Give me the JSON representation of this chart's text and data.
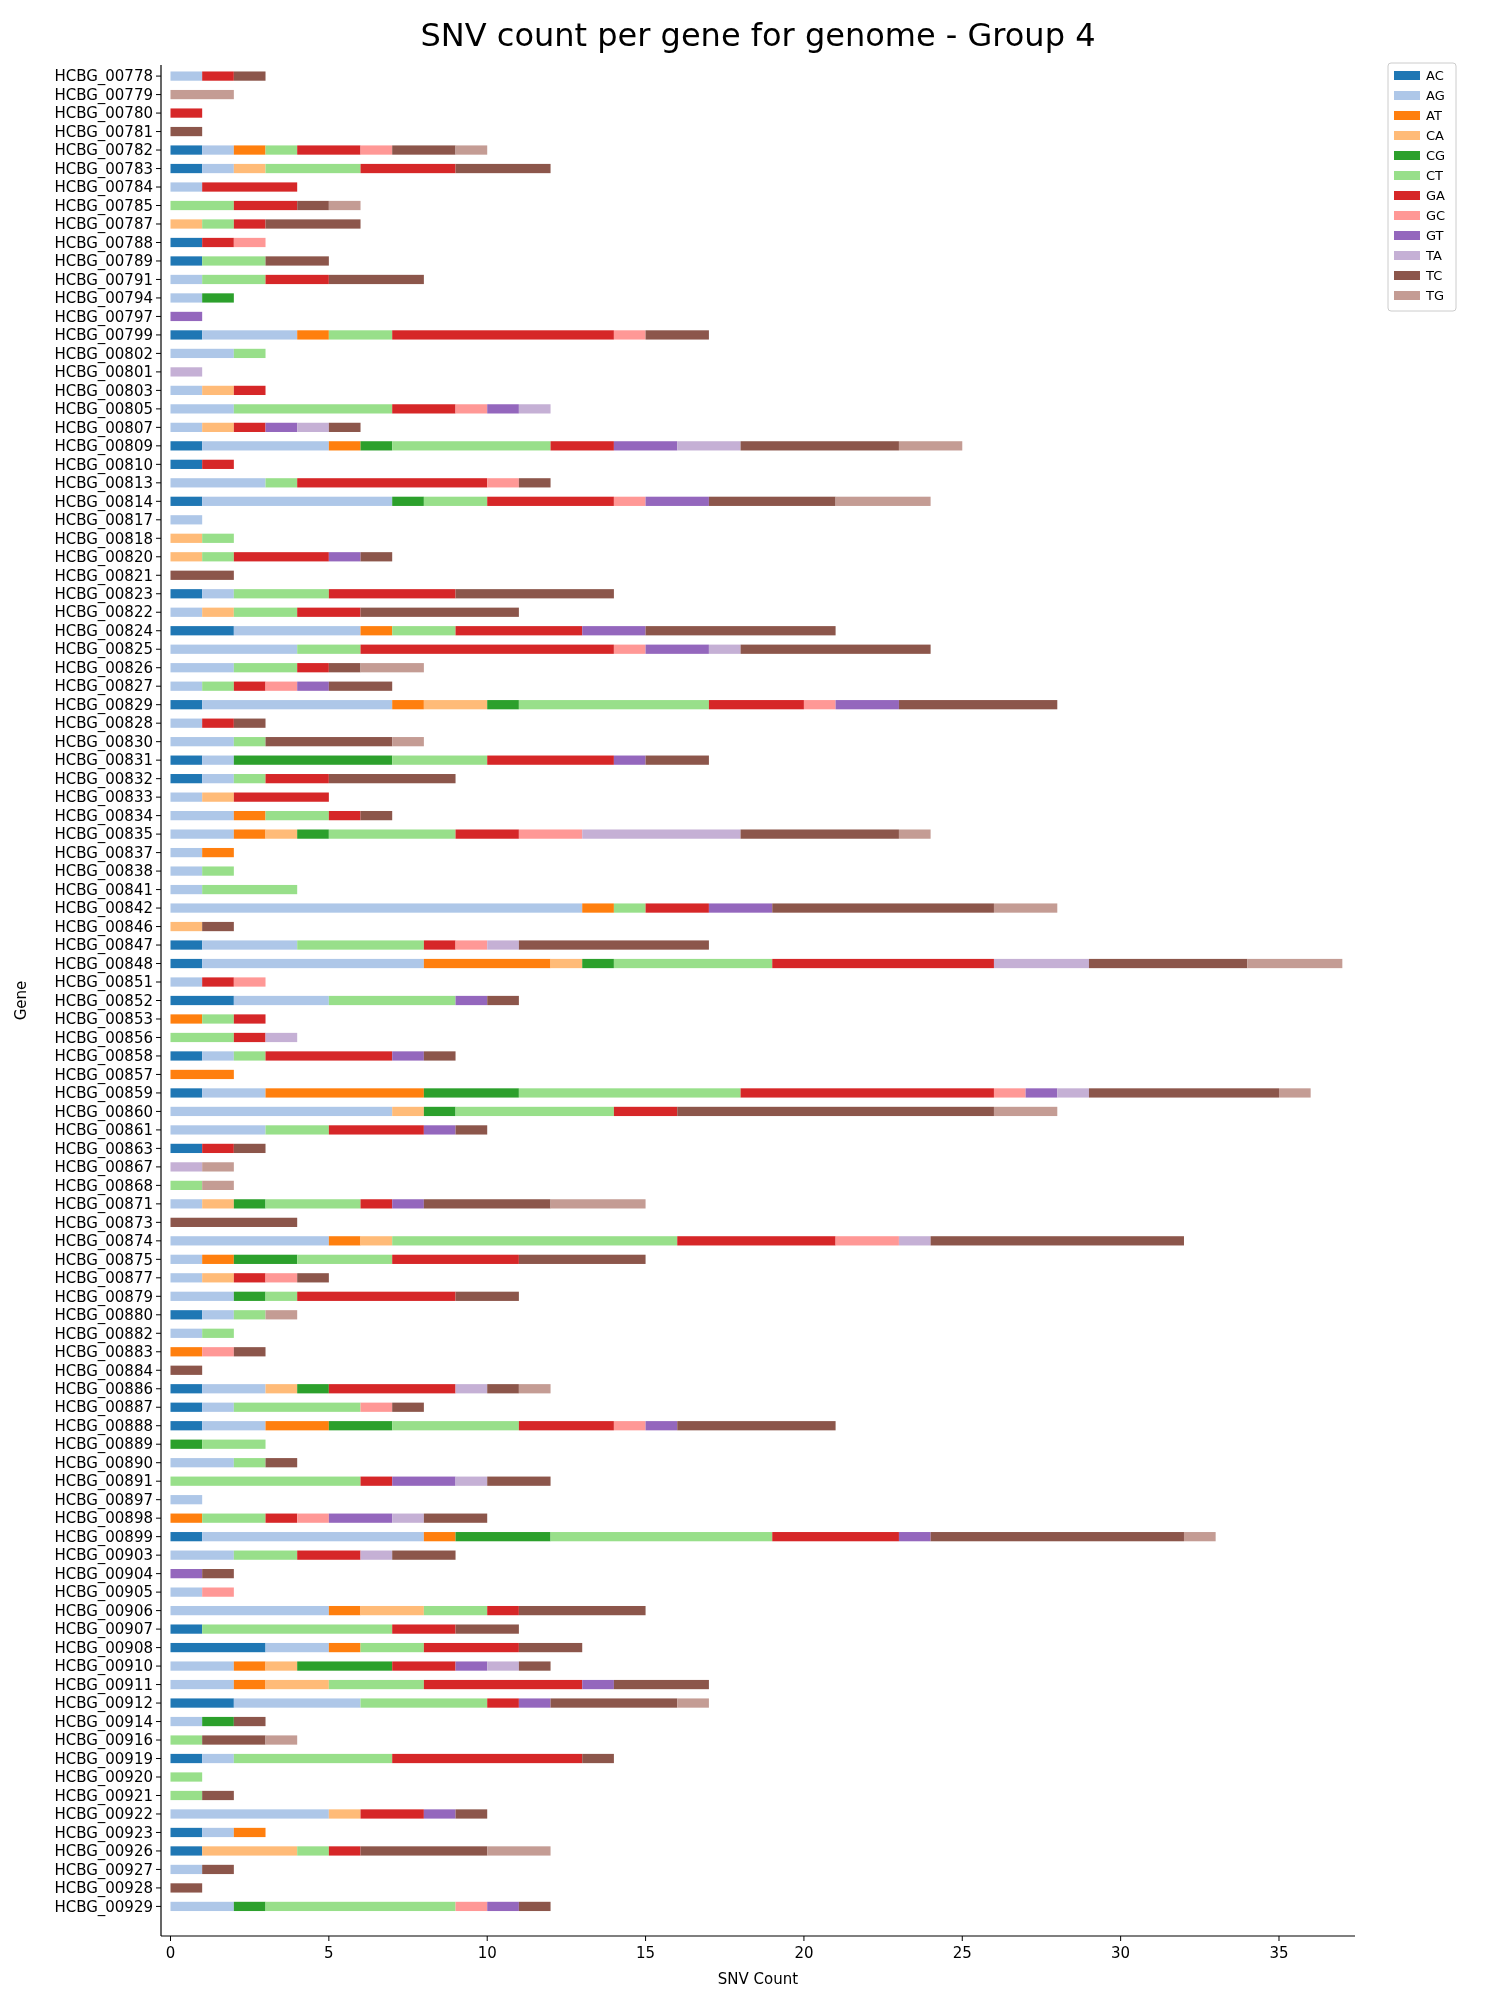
{
  "chart_data": {
    "type": "bar",
    "orientation": "horizontal",
    "stacked": true,
    "title": "SNV count per gene for genome - Group 4",
    "xlabel": "SNV Count",
    "ylabel": "Gene",
    "legend": "top right",
    "grid": false,
    "xlim": [
      -0.3,
      37.4
    ],
    "xticks": [
      0,
      5,
      10,
      15,
      20,
      25,
      30,
      35
    ],
    "categories": [
      "HCBG_00778",
      "HCBG_00779",
      "HCBG_00780",
      "HCBG_00781",
      "HCBG_00782",
      "HCBG_00783",
      "HCBG_00784",
      "HCBG_00785",
      "HCBG_00787",
      "HCBG_00788",
      "HCBG_00789",
      "HCBG_00791",
      "HCBG_00794",
      "HCBG_00797",
      "HCBG_00799",
      "HCBG_00802",
      "HCBG_00801",
      "HCBG_00803",
      "HCBG_00805",
      "HCBG_00807",
      "HCBG_00809",
      "HCBG_00810",
      "HCBG_00813",
      "HCBG_00814",
      "HCBG_00817",
      "HCBG_00818",
      "HCBG_00820",
      "HCBG_00821",
      "HCBG_00823",
      "HCBG_00822",
      "HCBG_00824",
      "HCBG_00825",
      "HCBG_00826",
      "HCBG_00827",
      "HCBG_00829",
      "HCBG_00828",
      "HCBG_00830",
      "HCBG_00831",
      "HCBG_00832",
      "HCBG_00833",
      "HCBG_00834",
      "HCBG_00835",
      "HCBG_00837",
      "HCBG_00838",
      "HCBG_00841",
      "HCBG_00842",
      "HCBG_00846",
      "HCBG_00847",
      "HCBG_00848",
      "HCBG_00851",
      "HCBG_00852",
      "HCBG_00853",
      "HCBG_00856",
      "HCBG_00858",
      "HCBG_00857",
      "HCBG_00859",
      "HCBG_00860",
      "HCBG_00861",
      "HCBG_00863",
      "HCBG_00867",
      "HCBG_00868",
      "HCBG_00871",
      "HCBG_00873",
      "HCBG_00874",
      "HCBG_00875",
      "HCBG_00877",
      "HCBG_00879",
      "HCBG_00880",
      "HCBG_00882",
      "HCBG_00883",
      "HCBG_00884",
      "HCBG_00886",
      "HCBG_00887",
      "HCBG_00888",
      "HCBG_00889",
      "HCBG_00890",
      "HCBG_00891",
      "HCBG_00897",
      "HCBG_00898",
      "HCBG_00899",
      "HCBG_00903",
      "HCBG_00904",
      "HCBG_00905",
      "HCBG_00906",
      "HCBG_00907",
      "HCBG_00908",
      "HCBG_00910",
      "HCBG_00911",
      "HCBG_00912",
      "HCBG_00914",
      "HCBG_00916",
      "HCBG_00919",
      "HCBG_00920",
      "HCBG_00921",
      "HCBG_00922",
      "HCBG_00923",
      "HCBG_00926",
      "HCBG_00927",
      "HCBG_00928",
      "HCBG_00929"
    ],
    "series": [
      {
        "name": "AC",
        "color": "#1f77b4",
        "values": [
          0,
          0,
          0,
          0,
          1,
          1,
          0,
          0,
          0,
          1,
          1,
          0,
          0,
          0,
          1,
          0,
          0,
          0,
          0,
          0,
          1,
          1,
          0,
          1,
          0,
          0,
          0,
          0,
          1,
          0,
          2,
          0,
          0,
          0,
          1,
          0,
          0,
          1,
          1,
          0,
          0,
          0,
          0,
          0,
          0,
          0,
          0,
          1,
          1,
          0,
          2,
          0,
          0,
          1,
          0,
          1,
          0,
          0,
          1,
          0,
          0,
          0,
          0,
          0,
          0,
          0,
          0,
          1,
          0,
          0,
          0,
          1,
          1,
          1,
          0,
          0,
          0,
          0,
          0,
          1,
          0,
          0,
          0,
          0,
          1,
          3,
          0,
          0,
          2,
          0,
          0,
          1,
          0,
          0,
          0,
          1,
          1,
          0,
          0,
          0
        ]
      },
      {
        "name": "AG",
        "color": "#aec7e8",
        "values": [
          1,
          0,
          0,
          0,
          1,
          1,
          1,
          0,
          0,
          0,
          0,
          1,
          1,
          0,
          3,
          2,
          0,
          1,
          2,
          1,
          4,
          0,
          3,
          6,
          1,
          0,
          0,
          0,
          1,
          1,
          4,
          4,
          2,
          1,
          6,
          1,
          2,
          1,
          1,
          1,
          2,
          2,
          1,
          1,
          1,
          13,
          0,
          3,
          7,
          1,
          3,
          0,
          0,
          1,
          0,
          2,
          7,
          3,
          0,
          0,
          0,
          1,
          0,
          5,
          1,
          1,
          2,
          1,
          1,
          0,
          0,
          2,
          1,
          2,
          0,
          2,
          0,
          1,
          0,
          7,
          2,
          0,
          1,
          5,
          0,
          2,
          2,
          2,
          4,
          1,
          0,
          1,
          0,
          0,
          5,
          1,
          0,
          1,
          0,
          2
        ]
      },
      {
        "name": "AT",
        "color": "#ff7f0e",
        "values": [
          0,
          0,
          0,
          0,
          1,
          0,
          0,
          0,
          0,
          0,
          0,
          0,
          0,
          0,
          1,
          0,
          0,
          0,
          0,
          0,
          1,
          0,
          0,
          0,
          0,
          0,
          0,
          0,
          0,
          0,
          1,
          0,
          0,
          0,
          1,
          0,
          0,
          0,
          0,
          0,
          1,
          1,
          1,
          0,
          0,
          1,
          0,
          0,
          4,
          0,
          0,
          1,
          0,
          0,
          2,
          5,
          0,
          0,
          0,
          0,
          0,
          0,
          0,
          1,
          1,
          0,
          0,
          0,
          0,
          1,
          0,
          0,
          0,
          2,
          0,
          0,
          0,
          0,
          1,
          1,
          0,
          0,
          0,
          1,
          0,
          1,
          1,
          1,
          0,
          0,
          0,
          0,
          0,
          0,
          0,
          1,
          0,
          0,
          0,
          0
        ]
      },
      {
        "name": "CA",
        "color": "#ffbb78",
        "values": [
          0,
          0,
          0,
          0,
          0,
          1,
          0,
          0,
          1,
          0,
          0,
          0,
          0,
          0,
          0,
          0,
          0,
          1,
          0,
          1,
          0,
          0,
          0,
          0,
          0,
          1,
          1,
          0,
          0,
          1,
          0,
          0,
          0,
          0,
          2,
          0,
          0,
          0,
          0,
          1,
          0,
          1,
          0,
          0,
          0,
          0,
          1,
          0,
          1,
          0,
          0,
          0,
          0,
          0,
          0,
          0,
          1,
          0,
          0,
          0,
          0,
          1,
          0,
          1,
          0,
          1,
          0,
          0,
          0,
          0,
          0,
          1,
          0,
          0,
          0,
          0,
          0,
          0,
          0,
          0,
          0,
          0,
          0,
          2,
          0,
          0,
          1,
          2,
          0,
          0,
          0,
          0,
          0,
          0,
          1,
          0,
          3,
          0,
          0,
          0
        ]
      },
      {
        "name": "CG",
        "color": "#2ca02c",
        "values": [
          0,
          0,
          0,
          0,
          0,
          0,
          0,
          0,
          0,
          0,
          0,
          0,
          1,
          0,
          0,
          0,
          0,
          0,
          0,
          0,
          1,
          0,
          0,
          1,
          0,
          0,
          0,
          0,
          0,
          0,
          0,
          0,
          0,
          0,
          1,
          0,
          0,
          5,
          0,
          0,
          0,
          1,
          0,
          0,
          0,
          0,
          0,
          0,
          1,
          0,
          0,
          0,
          0,
          0,
          0,
          3,
          1,
          0,
          0,
          0,
          0,
          1,
          0,
          0,
          2,
          0,
          1,
          0,
          0,
          0,
          0,
          1,
          0,
          2,
          1,
          0,
          0,
          0,
          0,
          3,
          0,
          0,
          0,
          0,
          0,
          0,
          3,
          0,
          0,
          1,
          0,
          0,
          0,
          0,
          0,
          0,
          0,
          0,
          0,
          1
        ]
      },
      {
        "name": "CT",
        "color": "#98df8a",
        "values": [
          0,
          0,
          0,
          0,
          1,
          3,
          0,
          2,
          1,
          0,
          2,
          2,
          0,
          0,
          2,
          1,
          0,
          0,
          5,
          0,
          5,
          0,
          1,
          2,
          0,
          1,
          1,
          0,
          3,
          2,
          2,
          2,
          2,
          1,
          6,
          0,
          1,
          3,
          1,
          0,
          2,
          4,
          0,
          1,
          3,
          1,
          0,
          4,
          5,
          0,
          4,
          1,
          2,
          1,
          0,
          7,
          5,
          2,
          0,
          0,
          1,
          3,
          0,
          9,
          3,
          0,
          1,
          1,
          1,
          0,
          0,
          0,
          4,
          4,
          2,
          1,
          6,
          0,
          2,
          7,
          2,
          0,
          0,
          2,
          6,
          2,
          0,
          3,
          4,
          0,
          1,
          5,
          1,
          1,
          0,
          0,
          1,
          0,
          0,
          6
        ]
      },
      {
        "name": "GA",
        "color": "#d62728",
        "values": [
          1,
          0,
          1,
          0,
          2,
          3,
          3,
          2,
          1,
          1,
          0,
          2,
          0,
          0,
          7,
          0,
          0,
          1,
          2,
          1,
          2,
          1,
          6,
          4,
          0,
          0,
          3,
          0,
          4,
          2,
          4,
          8,
          1,
          1,
          3,
          1,
          0,
          4,
          2,
          3,
          1,
          2,
          0,
          0,
          0,
          2,
          0,
          1,
          7,
          1,
          0,
          1,
          1,
          4,
          0,
          8,
          2,
          3,
          1,
          0,
          0,
          1,
          0,
          5,
          4,
          1,
          5,
          0,
          0,
          0,
          0,
          4,
          0,
          3,
          0,
          0,
          1,
          0,
          1,
          4,
          2,
          0,
          0,
          1,
          2,
          3,
          2,
          5,
          1,
          0,
          0,
          6,
          0,
          0,
          2,
          0,
          1,
          0,
          0,
          0
        ]
      },
      {
        "name": "GC",
        "color": "#ff9896",
        "values": [
          0,
          0,
          0,
          0,
          1,
          0,
          0,
          0,
          0,
          1,
          0,
          0,
          0,
          0,
          1,
          0,
          0,
          0,
          1,
          0,
          0,
          0,
          1,
          1,
          0,
          0,
          0,
          0,
          0,
          0,
          0,
          1,
          0,
          1,
          1,
          0,
          0,
          0,
          0,
          0,
          0,
          2,
          0,
          0,
          0,
          0,
          0,
          1,
          0,
          1,
          0,
          0,
          0,
          0,
          0,
          1,
          0,
          0,
          0,
          0,
          0,
          0,
          0,
          2,
          0,
          1,
          0,
          0,
          0,
          1,
          0,
          0,
          1,
          1,
          0,
          0,
          0,
          0,
          1,
          0,
          0,
          0,
          1,
          0,
          0,
          0,
          0,
          0,
          0,
          0,
          0,
          0,
          0,
          0,
          0,
          0,
          0,
          0,
          0,
          1
        ]
      },
      {
        "name": "GT",
        "color": "#9467bd",
        "values": [
          0,
          0,
          0,
          0,
          0,
          0,
          0,
          0,
          0,
          0,
          0,
          0,
          0,
          1,
          0,
          0,
          0,
          0,
          1,
          1,
          2,
          0,
          0,
          2,
          0,
          0,
          1,
          0,
          0,
          0,
          2,
          2,
          0,
          1,
          2,
          0,
          0,
          1,
          0,
          0,
          0,
          0,
          0,
          0,
          0,
          2,
          0,
          0,
          0,
          0,
          1,
          0,
          0,
          1,
          0,
          1,
          0,
          1,
          0,
          0,
          0,
          1,
          0,
          0,
          0,
          0,
          0,
          0,
          0,
          0,
          0,
          0,
          0,
          1,
          0,
          0,
          2,
          0,
          2,
          1,
          0,
          1,
          0,
          0,
          0,
          0,
          1,
          1,
          1,
          0,
          0,
          0,
          0,
          0,
          1,
          0,
          0,
          0,
          0,
          1
        ]
      },
      {
        "name": "TA",
        "color": "#c5b0d5",
        "values": [
          0,
          0,
          0,
          0,
          0,
          0,
          0,
          0,
          0,
          0,
          0,
          0,
          0,
          0,
          0,
          0,
          1,
          0,
          1,
          1,
          2,
          0,
          0,
          0,
          0,
          0,
          0,
          0,
          0,
          0,
          0,
          1,
          0,
          0,
          0,
          0,
          0,
          0,
          0,
          0,
          0,
          5,
          0,
          0,
          0,
          0,
          0,
          1,
          3,
          0,
          0,
          0,
          1,
          0,
          0,
          1,
          0,
          0,
          0,
          1,
          0,
          0,
          0,
          1,
          0,
          0,
          0,
          0,
          0,
          0,
          0,
          1,
          0,
          0,
          0,
          0,
          1,
          0,
          1,
          0,
          1,
          0,
          0,
          0,
          0,
          0,
          1,
          0,
          0,
          0,
          0,
          0,
          0,
          0,
          0,
          0,
          0,
          0,
          0,
          0
        ]
      },
      {
        "name": "TC",
        "color": "#8c564b",
        "values": [
          1,
          0,
          0,
          1,
          2,
          3,
          0,
          1,
          3,
          0,
          2,
          3,
          0,
          0,
          2,
          0,
          0,
          0,
          0,
          1,
          5,
          0,
          1,
          4,
          0,
          0,
          1,
          2,
          5,
          5,
          6,
          6,
          1,
          2,
          5,
          1,
          4,
          2,
          4,
          0,
          1,
          5,
          0,
          0,
          0,
          7,
          1,
          6,
          5,
          0,
          1,
          0,
          0,
          1,
          0,
          6,
          10,
          1,
          1,
          0,
          0,
          4,
          4,
          8,
          4,
          1,
          2,
          0,
          0,
          1,
          1,
          1,
          1,
          5,
          0,
          1,
          2,
          0,
          2,
          8,
          2,
          1,
          0,
          4,
          2,
          2,
          1,
          3,
          4,
          1,
          2,
          1,
          0,
          1,
          1,
          0,
          4,
          1,
          1,
          1
        ]
      },
      {
        "name": "TG",
        "color": "#c49c94",
        "values": [
          0,
          2,
          0,
          0,
          1,
          0,
          0,
          1,
          0,
          0,
          0,
          0,
          0,
          0,
          0,
          0,
          0,
          0,
          0,
          0,
          2,
          0,
          0,
          3,
          0,
          0,
          0,
          0,
          0,
          0,
          0,
          0,
          2,
          0,
          0,
          0,
          1,
          0,
          0,
          0,
          0,
          1,
          0,
          0,
          0,
          2,
          0,
          0,
          3,
          0,
          0,
          0,
          0,
          0,
          0,
          1,
          2,
          0,
          0,
          1,
          1,
          3,
          0,
          0,
          0,
          0,
          0,
          1,
          0,
          0,
          0,
          1,
          0,
          0,
          0,
          0,
          0,
          0,
          0,
          1,
          0,
          0,
          0,
          0,
          0,
          0,
          0,
          0,
          1,
          0,
          1,
          0,
          0,
          0,
          0,
          0,
          2,
          0,
          0,
          0
        ]
      }
    ]
  }
}
